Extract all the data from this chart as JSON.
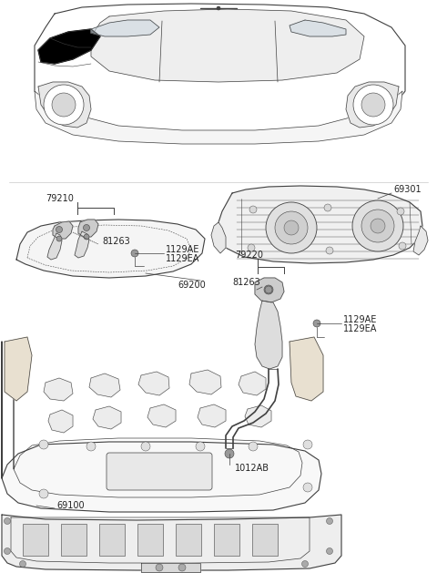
{
  "bg_color": "#ffffff",
  "line_color": "#404040",
  "font_size": 7.0,
  "label_color": "#222222",
  "parts": {
    "79210": {
      "text": "79210"
    },
    "81263_top": {
      "text": "81263"
    },
    "1129AE_top": {
      "text": "1129AE"
    },
    "1129EA_top": {
      "text": "1129EA"
    },
    "69200": {
      "text": "69200"
    },
    "69301": {
      "text": "69301"
    },
    "79220": {
      "text": "79220"
    },
    "81263_bot": {
      "text": "81263"
    },
    "1129AE_bot": {
      "text": "1129AE"
    },
    "1129EA_bot": {
      "text": "1129EA"
    },
    "1012AB": {
      "text": "1012AB"
    },
    "69100": {
      "text": "69100"
    }
  }
}
